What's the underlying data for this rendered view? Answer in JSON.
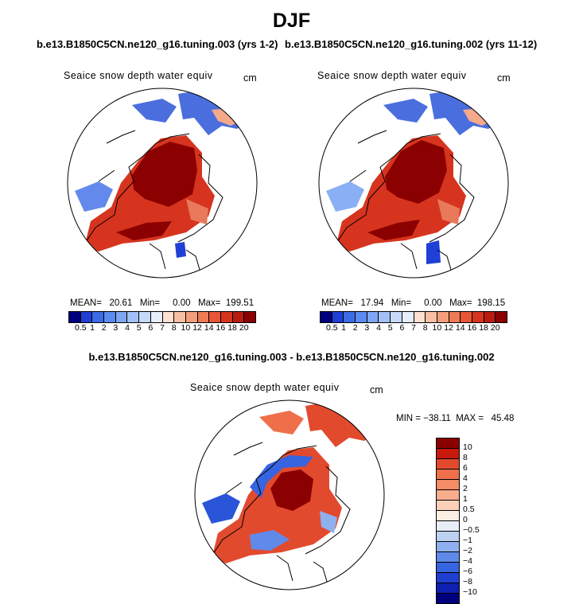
{
  "page": {
    "title": "DJF",
    "case1_title": "b.e13.B1850C5CN.ne120_g16.tuning.003 (yrs 1-2)",
    "case2_title": "b.e13.B1850C5CN.ne120_g16.tuning.002 (yrs 11-12)",
    "diff_title": "b.e13.B1850C5CN.ne120_g16.tuning.003 - b.e13.B1850C5CN.ne120_g16.tuning.002"
  },
  "panels": [
    {
      "variable": "Seaice snow depth water equiv",
      "units": "cm",
      "stats": "MEAN=   20.61   Min=     0.00   Max=  199.51"
    },
    {
      "variable": "Seaice snow depth water equiv",
      "units": "cm",
      "stats": "MEAN=   17.94   Min=     0.00   Max=  198.15"
    },
    {
      "variable": "Seaice snow depth water equiv",
      "units": "cm",
      "stats": "MIN = −38.11  MAX =   45.48"
    }
  ],
  "colorbar_abs": {
    "ticks": [
      "0.5",
      "1",
      "2",
      "3",
      "4",
      "5",
      "6",
      "7",
      "8",
      "10",
      "12",
      "14",
      "16",
      "18",
      "20"
    ],
    "colors": [
      "#00007f",
      "#1f3fd6",
      "#3b6ce6",
      "#5b8bf0",
      "#7ea6f3",
      "#a3c0f6",
      "#c6d9fa",
      "#e6eefc",
      "#fde0d0",
      "#f9bfa2",
      "#f59e7c",
      "#ef7a56",
      "#e75537",
      "#d6341e",
      "#b81c0f",
      "#8b0000"
    ]
  },
  "colorbar_diff": {
    "ticks": [
      "10",
      "8",
      "6",
      "4",
      "2",
      "1",
      "0.5",
      "0",
      "−0.5",
      "−1",
      "−2",
      "−4",
      "−6",
      "−8",
      "−10"
    ],
    "colors": [
      "#8b0000",
      "#c8190d",
      "#e24a2e",
      "#ef6f4a",
      "#f48c66",
      "#f8ad8c",
      "#fbd0b8",
      "#fdeee4",
      "#e8eef9",
      "#bcd0f3",
      "#8fb0ee",
      "#5f8aea",
      "#3764e0",
      "#1f3fd0",
      "#0f20b0",
      "#00007f"
    ]
  },
  "colors": {
    "ice_core": "#8b0000",
    "ice_mid": "#c0392b",
    "ice_edge": "#e8795a",
    "land_outline": "#000000",
    "ocean": "#ffffff",
    "cool": "#2a55d8"
  }
}
